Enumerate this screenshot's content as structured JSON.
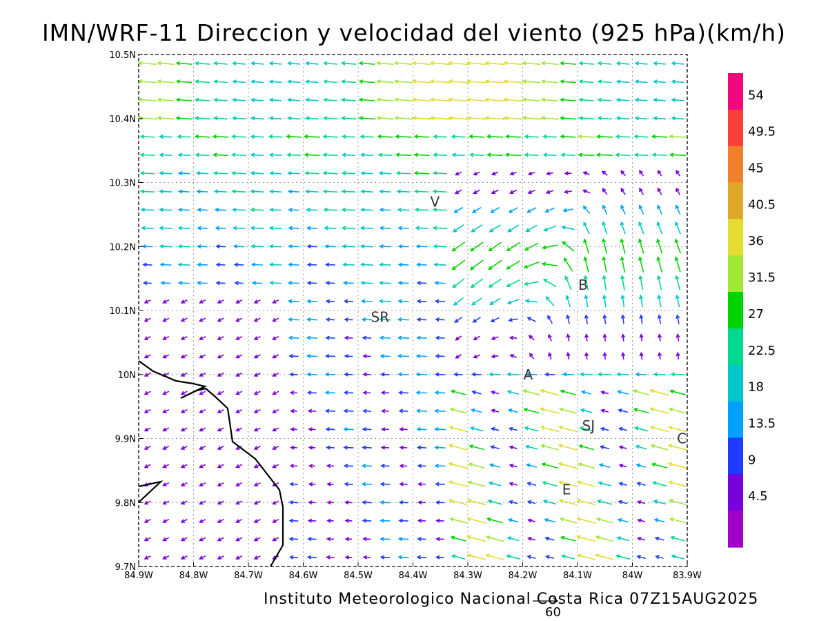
{
  "map": {
    "title": "IMN/WRF-11 Direccion y velocidad del viento (925 hPa)(km/h)",
    "credit": "Instituto Meteorologico Nacional Costa Rica 07Z15AUG2025",
    "reference_vector_value": "60",
    "lon_range": [
      -84.9,
      -83.9
    ],
    "lat_range": [
      9.7,
      10.5
    ],
    "lon_ticks": [
      "84.9W",
      "84.8W",
      "84.7W",
      "84.6W",
      "84.5W",
      "84.4W",
      "84.3W",
      "84.2W",
      "84.1W",
      "84W",
      "83.9W"
    ],
    "lat_ticks": [
      "9.7N",
      "9.8N",
      "9.9N",
      "10N",
      "10.1N",
      "10.2N",
      "10.3N",
      "10.4N",
      "10.5N"
    ],
    "stations": [
      {
        "label": "V",
        "lon": -84.36,
        "lat": 10.27
      },
      {
        "label": "B",
        "lon": -84.09,
        "lat": 10.14
      },
      {
        "label": "SR",
        "lon": -84.46,
        "lat": 10.09
      },
      {
        "label": "A",
        "lon": -84.19,
        "lat": 10.0
      },
      {
        "label": "SJ",
        "lon": -84.08,
        "lat": 9.92
      },
      {
        "label": "C",
        "lon": -83.91,
        "lat": 9.9
      },
      {
        "label": "E",
        "lon": -84.12,
        "lat": 9.82
      }
    ],
    "legend": {
      "labels": [
        "54",
        "49.5",
        "45",
        "40.5",
        "36",
        "31.5",
        "27",
        "22.5",
        "18",
        "13.5",
        "9",
        "4.5"
      ],
      "colors": [
        "#f0087c",
        "#f84038",
        "#f0802c",
        "#e0a828",
        "#e4dc30",
        "#a0e834",
        "#00d400",
        "#00d88c",
        "#00c8c8",
        "#00a0ff",
        "#1e3cff",
        "#7800dc",
        "#a000c8"
      ]
    }
  }
}
